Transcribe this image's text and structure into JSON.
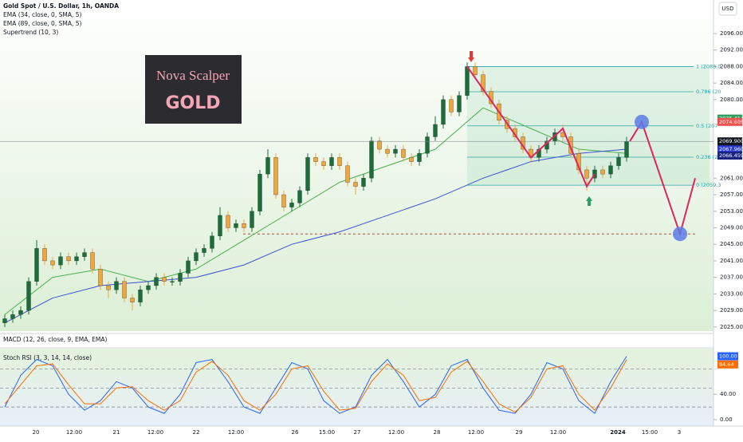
{
  "chart_data": {
    "type": "candlestick",
    "title": "Gold Spot / U.S. Dollar, 1h, OANDA",
    "currency": "USD",
    "legend_extra": "Supertrend (10, 3)",
    "logo": {
      "line1": "Nova Scalper",
      "line2": "GOLD"
    },
    "up_color": "#1b6e3a",
    "down_color": "#f0a63a",
    "ylim": [
      2024,
      2104.1
    ],
    "yticks": [
      {
        "value": 2025,
        "label": "2025.000"
      },
      {
        "value": 2029,
        "label": "2029.000"
      },
      {
        "value": 2033,
        "label": "2033.000"
      },
      {
        "value": 2037,
        "label": "2037.000"
      },
      {
        "value": 2041,
        "label": "2041.000"
      },
      {
        "value": 2045,
        "label": "2045.000"
      },
      {
        "value": 2049,
        "label": "2049.000"
      },
      {
        "value": 2053,
        "label": "2053.000"
      },
      {
        "value": 2057,
        "label": "2057.000"
      },
      {
        "value": 2061,
        "label": "2061.000"
      },
      {
        "value": 2080,
        "label": "2080.000"
      },
      {
        "value": 2084,
        "label": "2084.000"
      },
      {
        "value": 2088,
        "label": "2088.000"
      },
      {
        "value": 2092,
        "label": "2092.000"
      },
      {
        "value": 2096,
        "label": "2096.000"
      }
    ],
    "x_labels": [
      "20",
      "12:00",
      "21",
      "12:00",
      "22",
      "12:00",
      "26",
      "15:00",
      "27",
      "12:00",
      "28",
      "12:00",
      "29",
      "12:00",
      "2024",
      "15:00",
      "3"
    ],
    "candles": [
      [
        2026,
        2028,
        2025,
        2027
      ],
      [
        2027,
        2029,
        2026,
        2028
      ],
      [
        2028,
        2030,
        2027,
        2029
      ],
      [
        2029,
        2037,
        2028,
        2036
      ],
      [
        2036,
        2046,
        2035,
        2044
      ],
      [
        2044,
        2045,
        2040,
        2041
      ],
      [
        2041,
        2042,
        2039,
        2040
      ],
      [
        2040,
        2043,
        2039,
        2042
      ],
      [
        2042,
        2043,
        2040,
        2041
      ],
      [
        2041,
        2043,
        2040,
        2042
      ],
      [
        2042,
        2044,
        2041,
        2043
      ],
      [
        2043,
        2044,
        2038,
        2039
      ],
      [
        2039,
        2040,
        2034,
        2035
      ],
      [
        2035,
        2036,
        2032,
        2034
      ],
      [
        2034,
        2037,
        2033,
        2036
      ],
      [
        2036,
        2037,
        2031,
        2032
      ],
      [
        2032,
        2033,
        2029,
        2031
      ],
      [
        2031,
        2035,
        2030,
        2034
      ],
      [
        2034,
        2036,
        2033,
        2035
      ],
      [
        2035,
        2038,
        2034,
        2037
      ],
      [
        2037,
        2038,
        2035,
        2036
      ],
      [
        2036,
        2037,
        2035,
        2036
      ],
      [
        2036,
        2039,
        2035,
        2038
      ],
      [
        2038,
        2042,
        2037,
        2041
      ],
      [
        2041,
        2044,
        2040,
        2043
      ],
      [
        2043,
        2045,
        2042,
        2044
      ],
      [
        2044,
        2048,
        2043,
        2047
      ],
      [
        2047,
        2054,
        2046,
        2052
      ],
      [
        2052,
        2053,
        2048,
        2049
      ],
      [
        2049,
        2051,
        2048,
        2050
      ],
      [
        2050,
        2051,
        2048,
        2049
      ],
      [
        2049,
        2054,
        2048,
        2053
      ],
      [
        2053,
        2063,
        2052,
        2062
      ],
      [
        2062,
        2068,
        2061,
        2066
      ],
      [
        2066,
        2067,
        2056,
        2057
      ],
      [
        2057,
        2058,
        2053,
        2054
      ],
      [
        2054,
        2056,
        2053,
        2055
      ],
      [
        2055,
        2059,
        2054,
        2058
      ],
      [
        2058,
        2067,
        2057,
        2066
      ],
      [
        2066,
        2067,
        2064,
        2065
      ],
      [
        2065,
        2066,
        2063,
        2064
      ],
      [
        2064,
        2067,
        2063,
        2066
      ],
      [
        2066,
        2067,
        2063,
        2064
      ],
      [
        2064,
        2065,
        2059,
        2060
      ],
      [
        2060,
        2061,
        2057,
        2059
      ],
      [
        2059,
        2062,
        2058,
        2061
      ],
      [
        2061,
        2071,
        2060,
        2070
      ],
      [
        2070,
        2071,
        2067,
        2068
      ],
      [
        2068,
        2069,
        2066,
        2067
      ],
      [
        2067,
        2069,
        2066,
        2068
      ],
      [
        2068,
        2069,
        2065,
        2066
      ],
      [
        2066,
        2067,
        2064,
        2065
      ],
      [
        2065,
        2068,
        2064,
        2067
      ],
      [
        2067,
        2072,
        2066,
        2071
      ],
      [
        2071,
        2076,
        2070,
        2074
      ],
      [
        2074,
        2081,
        2073,
        2080
      ],
      [
        2080,
        2081,
        2076,
        2077
      ],
      [
        2077,
        2082,
        2076,
        2081
      ],
      [
        2081,
        2089,
        2080,
        2088
      ],
      [
        2088,
        2089,
        2085,
        2086
      ],
      [
        2086,
        2087,
        2081,
        2082
      ],
      [
        2082,
        2083,
        2078,
        2079
      ],
      [
        2079,
        2080,
        2074,
        2075
      ],
      [
        2075,
        2076,
        2072,
        2073
      ],
      [
        2073,
        2074,
        2070,
        2071
      ],
      [
        2071,
        2072,
        2067,
        2068
      ],
      [
        2068,
        2069,
        2065,
        2066
      ],
      [
        2066,
        2069,
        2065,
        2068
      ],
      [
        2068,
        2071,
        2067,
        2070
      ],
      [
        2070,
        2073,
        2069,
        2072
      ],
      [
        2072,
        2074,
        2070,
        2071
      ],
      [
        2071,
        2072,
        2066,
        2067
      ],
      [
        2067,
        2068,
        2062,
        2063
      ],
      [
        2063,
        2064,
        2058,
        2061
      ],
      [
        2061,
        2064,
        2060,
        2063
      ],
      [
        2063,
        2064,
        2061,
        2062
      ],
      [
        2062,
        2065,
        2061,
        2064
      ],
      [
        2064,
        2067,
        2063,
        2066
      ],
      [
        2066,
        2071,
        2065,
        2069.9
      ]
    ],
    "series": [
      {
        "name": "EMA (34, close, 0, SMA, 5)",
        "color": "#4caf50",
        "x": [
          0,
          6,
          12,
          18,
          24,
          30,
          36,
          42,
          48,
          54,
          60,
          66,
          72,
          78
        ],
        "values": [
          2028,
          2037,
          2039,
          2036,
          2039,
          2046,
          2053,
          2060,
          2064,
          2068,
          2078,
          2073,
          2068,
          2067
        ]
      },
      {
        "name": "EMA (89, close, 0, SMA, 5)",
        "color": "#3f51d8",
        "x": [
          0,
          6,
          12,
          18,
          24,
          30,
          36,
          42,
          48,
          54,
          60,
          66,
          72,
          78
        ],
        "values": [
          2026,
          2032,
          2035,
          2036,
          2037,
          2040,
          2045,
          2048,
          2052,
          2056,
          2061,
          2065,
          2067,
          2068
        ]
      }
    ],
    "fib": [
      {
        "label": "1 (2088.0",
        "value": 2088.0
      },
      {
        "label": "0.786 (20",
        "value": 2081.9
      },
      {
        "label": "0.5 (207",
        "value": 2073.65
      },
      {
        "label": "0.236 (20",
        "value": 2066.07
      },
      {
        "label": "0 (2059.3",
        "value": 2059.3
      }
    ],
    "fib_start": 58,
    "support_line": 2047.5,
    "zigzag": {
      "x": [
        58,
        66,
        70,
        73,
        74
      ],
      "values": [
        2088,
        2066,
        2073,
        2059,
        2062
      ]
    },
    "projection": [
      2069.9,
      2074.6,
      2047.5,
      2061
    ],
    "price_badges": [
      {
        "value": 2075.414,
        "label": "2075.414",
        "color": "#2e9e5a"
      },
      {
        "value": 2074.605,
        "label": "2074.605",
        "color": "#ef5350"
      },
      {
        "value": 2069.9,
        "label": "2069.900",
        "color": "#131722",
        "extra": "26:02"
      },
      {
        "value": 2067.96,
        "label": "2067.960",
        "color": "#2a3ccf"
      },
      {
        "value": 2066.459,
        "label": "2066.459",
        "color": "#1a237e"
      }
    ],
    "macd_title": "MACD (12, 26, close, 9, EMA, EMA)",
    "stoch": {
      "title": "Stoch RSI (3, 3, 14, 14, close)",
      "ylim": [
        -10,
        112
      ],
      "yticks": [
        {
          "value": 40,
          "label": "40.00"
        },
        {
          "value": 0,
          "label": "0.00"
        }
      ],
      "levels": [
        80,
        50,
        20
      ],
      "series": [
        {
          "color": "#2962ff",
          "values": [
            20,
            70,
            95,
            85,
            40,
            15,
            30,
            60,
            50,
            20,
            10,
            40,
            90,
            95,
            60,
            20,
            10,
            50,
            90,
            80,
            30,
            10,
            20,
            70,
            95,
            60,
            20,
            40,
            85,
            95,
            50,
            15,
            10,
            40,
            90,
            80,
            30,
            10,
            60,
            100
          ]
        },
        {
          "color": "#ff6d00",
          "values": [
            25,
            55,
            85,
            88,
            55,
            25,
            25,
            50,
            52,
            30,
            15,
            30,
            75,
            92,
            70,
            30,
            15,
            40,
            80,
            85,
            45,
            15,
            18,
            60,
            88,
            70,
            30,
            35,
            75,
            92,
            60,
            25,
            12,
            35,
            80,
            85,
            40,
            15,
            50,
            94.64
          ]
        }
      ],
      "badges": [
        {
          "value": 100,
          "label": "100.00",
          "color": "#2962ff"
        },
        {
          "value": 94.64,
          "label": "94.64",
          "color": "#ff6d00"
        }
      ]
    }
  }
}
